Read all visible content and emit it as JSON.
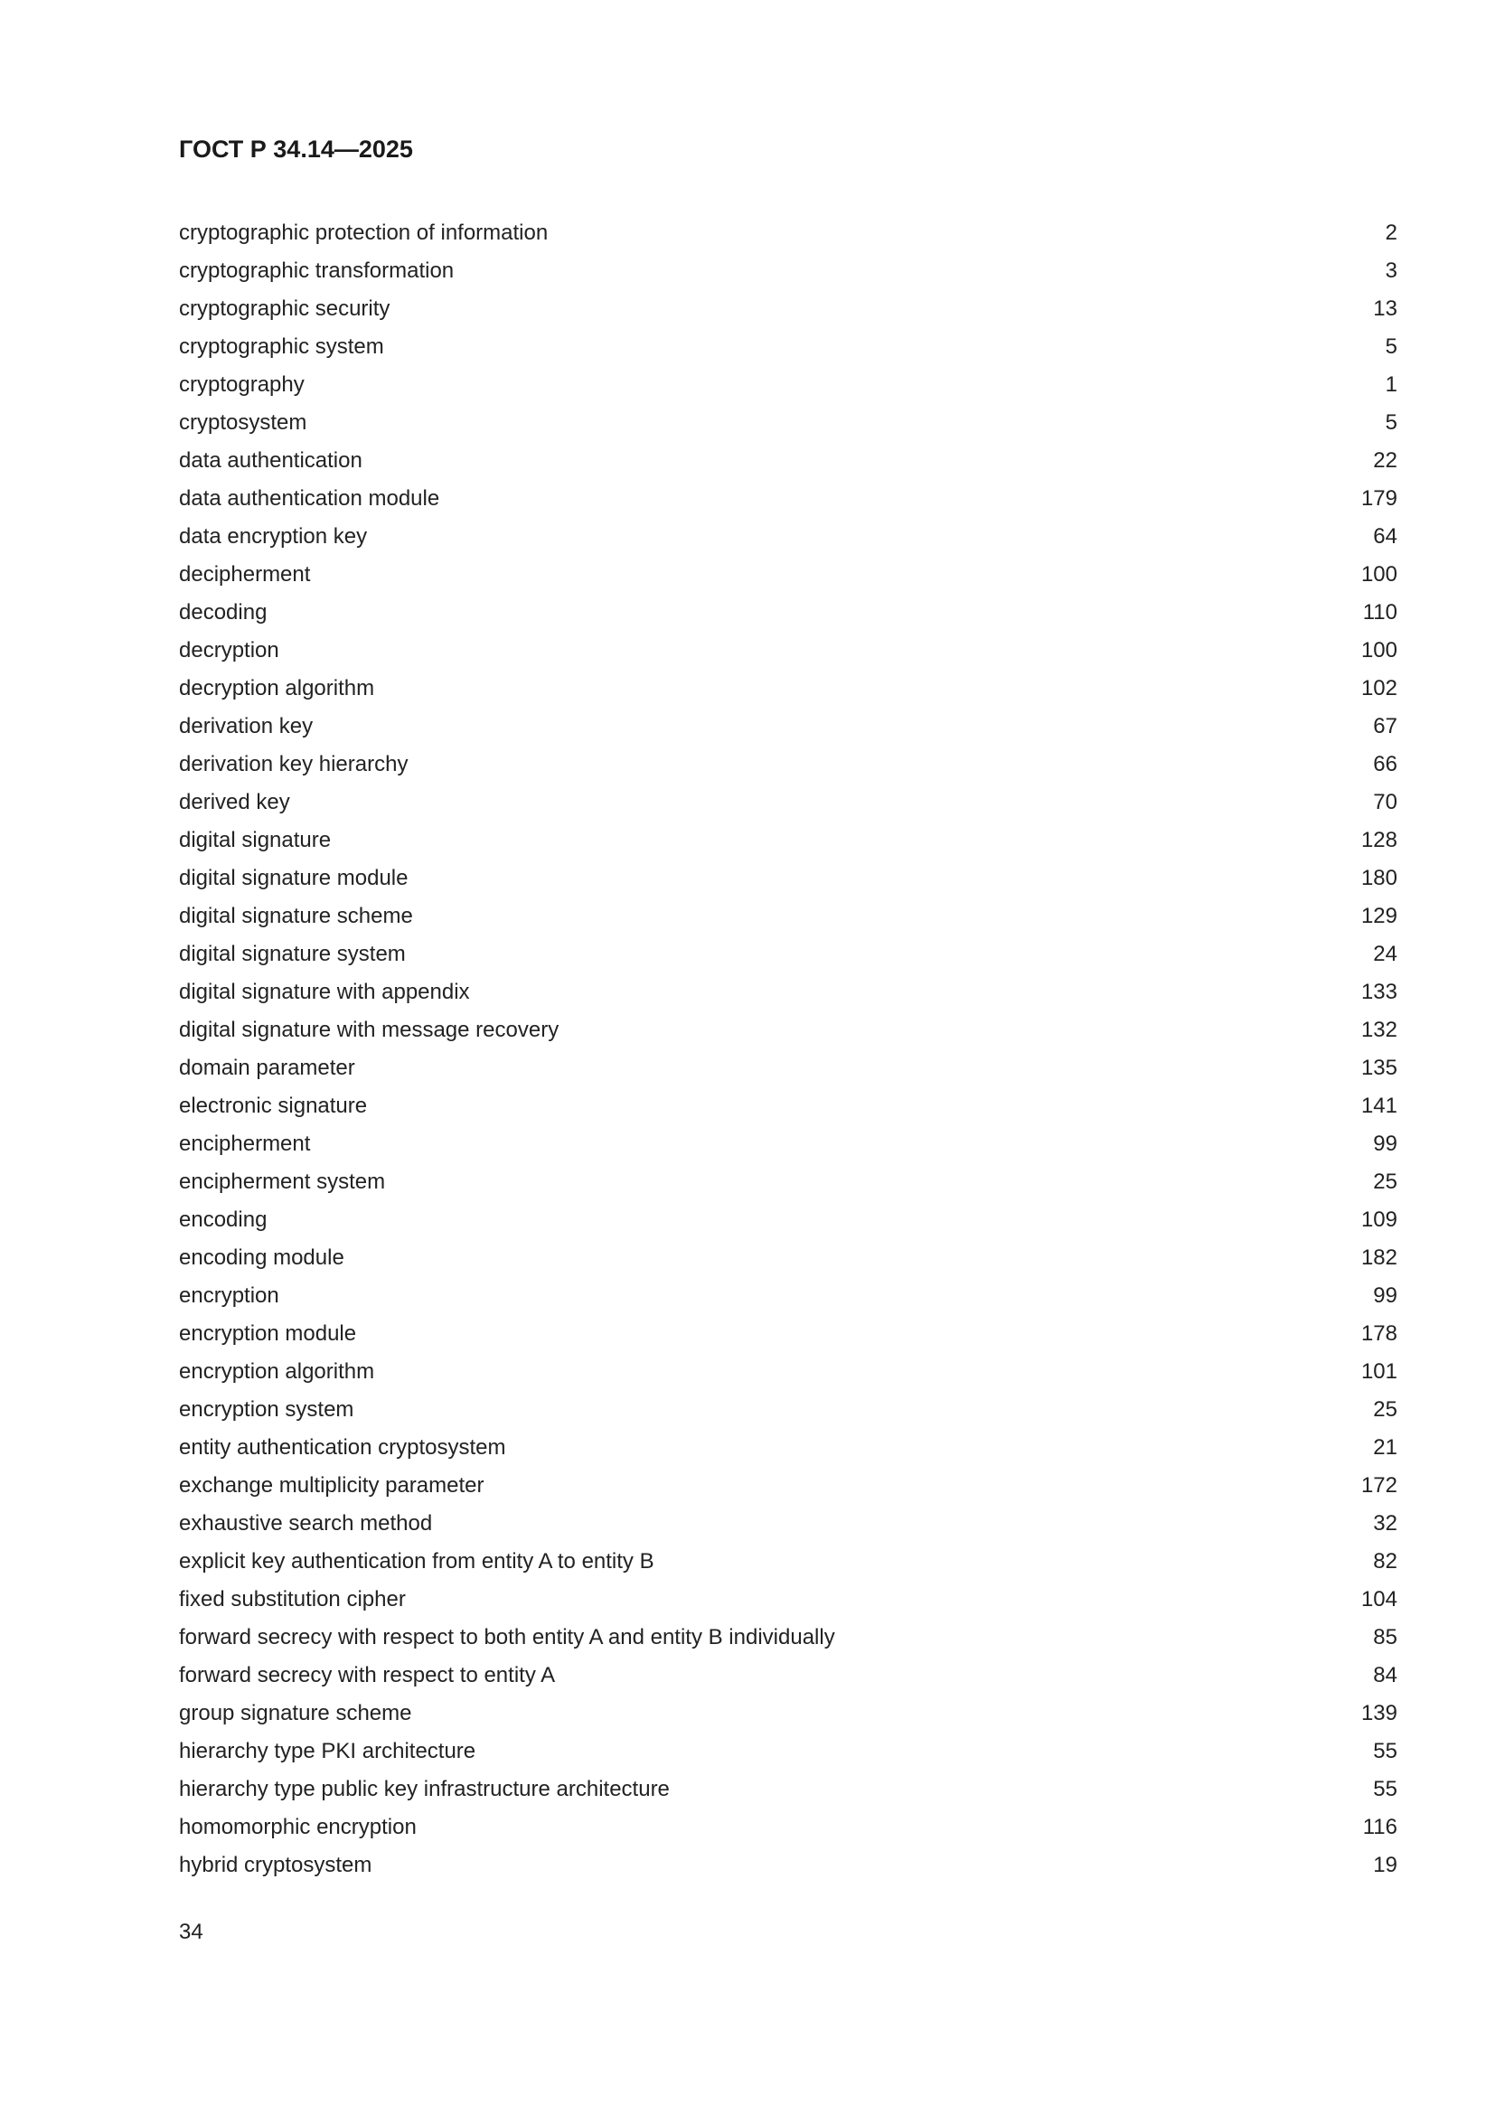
{
  "header": {
    "title": "ГОСТ Р 34.14—2025"
  },
  "entries": [
    {
      "term": "cryptographic protection of information",
      "ref": "2"
    },
    {
      "term": "cryptographic transformation",
      "ref": "3"
    },
    {
      "term": "cryptographic security",
      "ref": "13"
    },
    {
      "term": "cryptographic system",
      "ref": "5"
    },
    {
      "term": "cryptography",
      "ref": "1"
    },
    {
      "term": "cryptosystem",
      "ref": "5"
    },
    {
      "term": "data authentication",
      "ref": "22"
    },
    {
      "term": "data authentication module",
      "ref": "179"
    },
    {
      "term": "data encryption key",
      "ref": "64"
    },
    {
      "term": "decipherment",
      "ref": "100"
    },
    {
      "term": "decoding",
      "ref": "110"
    },
    {
      "term": "decryption",
      "ref": "100"
    },
    {
      "term": "decryption algorithm",
      "ref": "102"
    },
    {
      "term": "derivation key",
      "ref": "67"
    },
    {
      "term": "derivation key hierarchy",
      "ref": "66"
    },
    {
      "term": "derived key",
      "ref": "70"
    },
    {
      "term": "digital signature",
      "ref": "128"
    },
    {
      "term": "digital signature module",
      "ref": "180"
    },
    {
      "term": "digital signature scheme",
      "ref": "129"
    },
    {
      "term": "digital signature system",
      "ref": "24"
    },
    {
      "term": "digital signature with appendix",
      "ref": "133"
    },
    {
      "term": "digital signature with message recovery",
      "ref": "132"
    },
    {
      "term": "domain parameter",
      "ref": "135"
    },
    {
      "term": "electronic signature",
      "ref": "141"
    },
    {
      "term": "encipherment",
      "ref": "99"
    },
    {
      "term": "encipherment system",
      "ref": "25"
    },
    {
      "term": "encoding",
      "ref": "109"
    },
    {
      "term": "encoding module",
      "ref": "182"
    },
    {
      "term": "encryption",
      "ref": "99"
    },
    {
      "term": "encryption module",
      "ref": "178"
    },
    {
      "term": "encryption algorithm",
      "ref": "101"
    },
    {
      "term": "encryption system",
      "ref": "25"
    },
    {
      "term": "entity authentication cryptosystem",
      "ref": "21"
    },
    {
      "term": "exchange multiplicity parameter",
      "ref": "172"
    },
    {
      "term": "exhaustive search method",
      "ref": "32"
    },
    {
      "term": "explicit key authentication from entity A to entity B",
      "ref": "82"
    },
    {
      "term": "fixed substitution cipher",
      "ref": "104"
    },
    {
      "term": "forward secrecy with respect to both entity A and entity B individually",
      "ref": "85"
    },
    {
      "term": "forward secrecy with respect to entity A",
      "ref": "84"
    },
    {
      "term": "group signature scheme",
      "ref": "139"
    },
    {
      "term": "hierarchy type PKI architecture",
      "ref": "55"
    },
    {
      "term": "hierarchy type public key infrastructure architecture",
      "ref": "55"
    },
    {
      "term": "homomorphic encryption",
      "ref": "116"
    },
    {
      "term": "hybrid cryptosystem",
      "ref": "19"
    }
  ],
  "footer": {
    "page_number": "34"
  }
}
